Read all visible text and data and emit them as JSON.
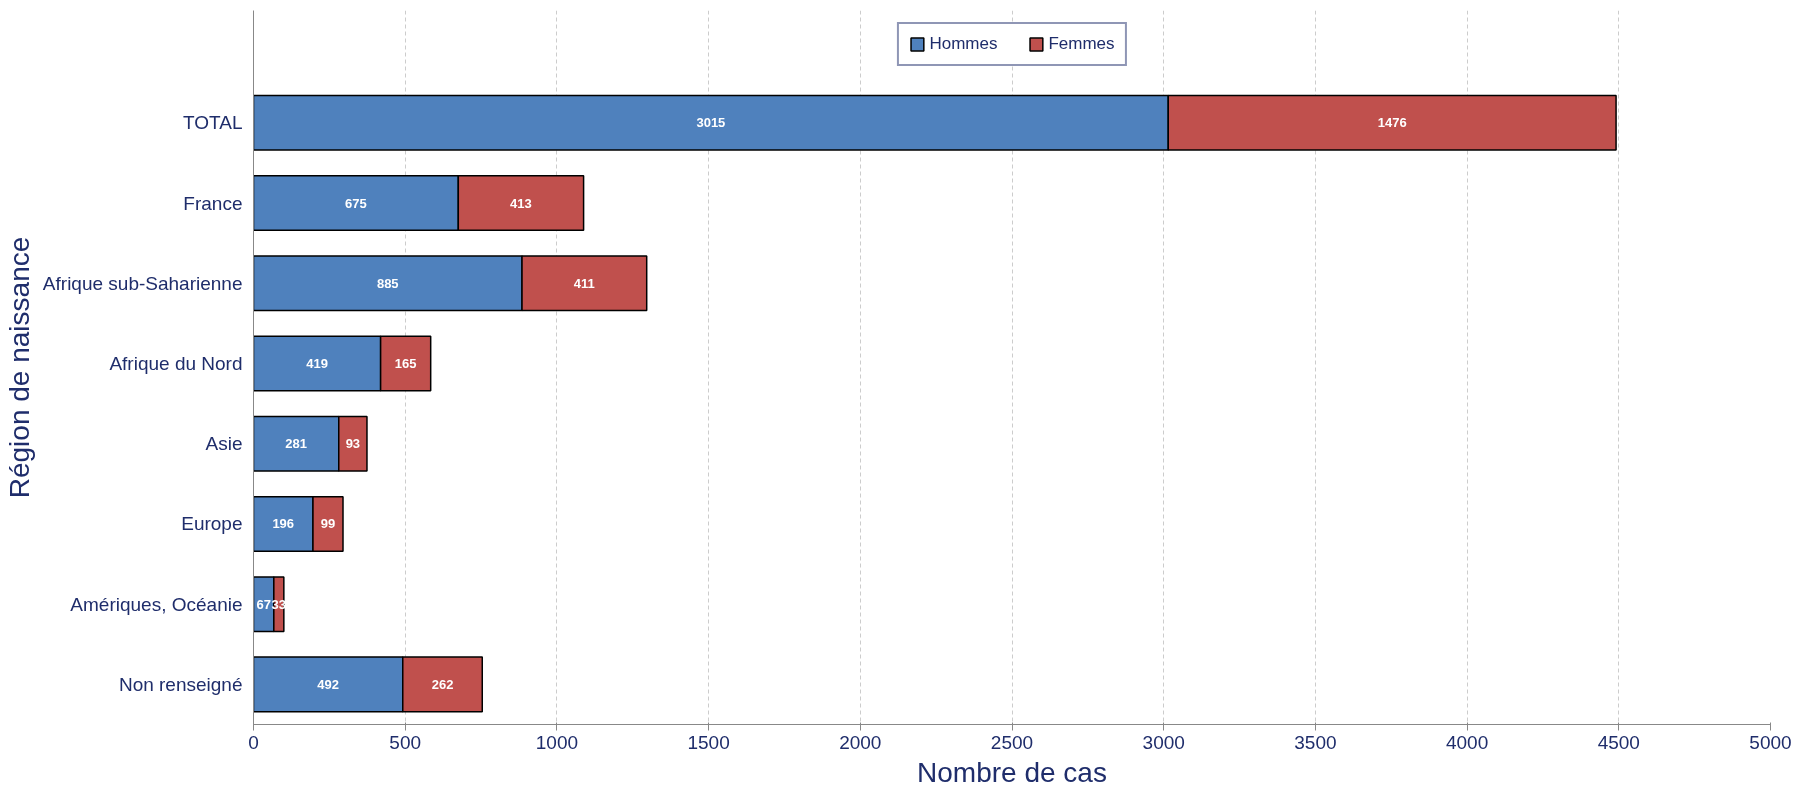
{
  "chart_data": {
    "type": "bar",
    "orientation": "horizontal",
    "stacked": true,
    "xlabel": "Nombre de cas",
    "ylabel": "Région de naissance",
    "categories": [
      "TOTAL",
      "France",
      "Afrique sub-Saharienne",
      "Afrique du Nord",
      "Asie",
      "Europe",
      "Amériques, Océanie",
      "Non renseigné"
    ],
    "series": [
      {
        "name": "Hommes",
        "color": "#4f81bd",
        "values": [
          3015,
          675,
          885,
          419,
          281,
          196,
          67,
          492
        ]
      },
      {
        "name": "Femmes",
        "color": "#c0504d",
        "values": [
          1476,
          413,
          411,
          165,
          93,
          99,
          33,
          262
        ]
      }
    ],
    "xlim": [
      0,
      5000
    ],
    "xticks": [
      0,
      500,
      1000,
      1500,
      2000,
      2500,
      3000,
      3500,
      4000,
      4500,
      5000
    ],
    "grid": "x",
    "legend": "top",
    "data_labels": true
  }
}
